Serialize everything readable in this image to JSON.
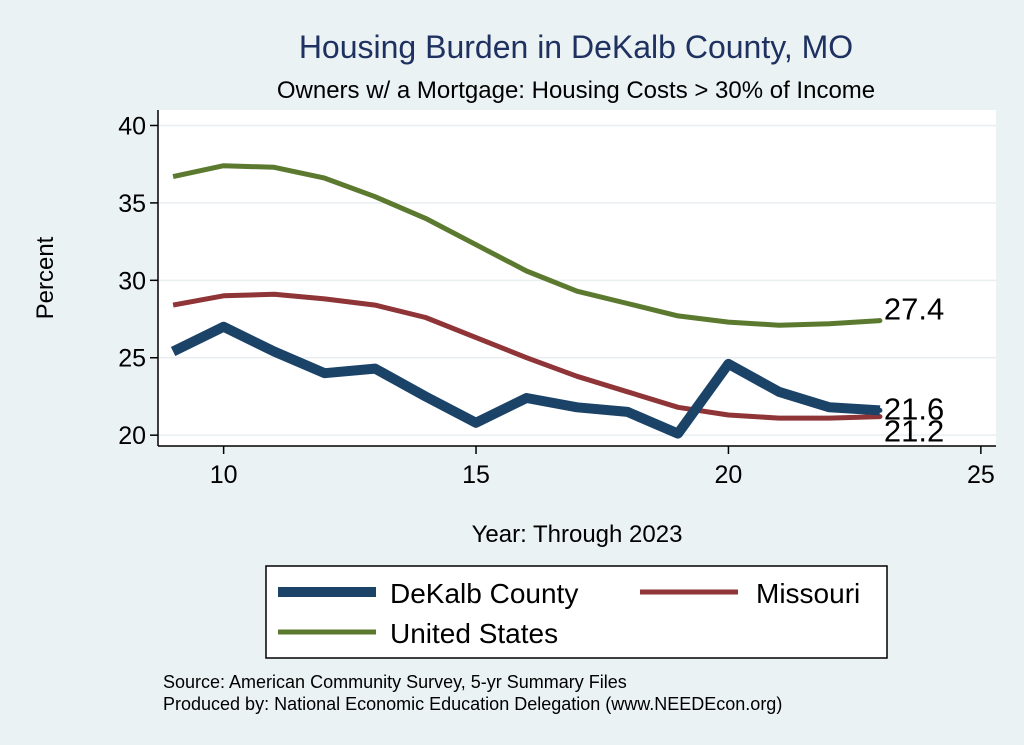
{
  "chart_data": {
    "type": "line",
    "title": "Housing Burden in DeKalb County, MO",
    "subtitle": "Owners w/ a Mortgage: Housing Costs > 30% of Income",
    "xlabel": "Year: Through 2023",
    "ylabel": "Percent",
    "xlim": [
      8.7,
      25.3
    ],
    "ylim": [
      19.3,
      41.0
    ],
    "xticks": [
      10,
      15,
      20,
      25
    ],
    "yticks": [
      20,
      25,
      30,
      35,
      40
    ],
    "grid": true,
    "x": [
      9,
      10,
      11,
      12,
      13,
      14,
      15,
      16,
      17,
      18,
      19,
      20,
      21,
      22,
      23
    ],
    "series": [
      {
        "name": "DeKalb County",
        "color": "#1b4368",
        "values": [
          25.4,
          27.0,
          25.4,
          24.0,
          24.3,
          22.5,
          20.8,
          22.4,
          21.8,
          21.5,
          20.1,
          24.6,
          22.8,
          21.8,
          21.6
        ],
        "end_label": "21.6"
      },
      {
        "name": "Missouri",
        "color": "#8f3437",
        "values": [
          28.4,
          29.0,
          29.1,
          28.8,
          28.4,
          27.6,
          26.3,
          25.0,
          23.8,
          22.8,
          21.8,
          21.3,
          21.1,
          21.1,
          21.2
        ],
        "end_label": "21.2"
      },
      {
        "name": "United States",
        "color": "#5b7a2f",
        "values": [
          36.7,
          37.4,
          37.3,
          36.6,
          35.4,
          34.0,
          32.3,
          30.6,
          29.3,
          28.5,
          27.7,
          27.3,
          27.1,
          27.2,
          27.4
        ],
        "end_label": "27.4"
      }
    ],
    "legend": {
      "position": "bottom",
      "entries": [
        "DeKalb County",
        "Missouri",
        "United States"
      ]
    },
    "notes": [
      "Source: American Community Survey, 5-yr Summary Files",
      "Produced by: National Economic Education Delegation (www.NEEDEcon.org)"
    ]
  }
}
